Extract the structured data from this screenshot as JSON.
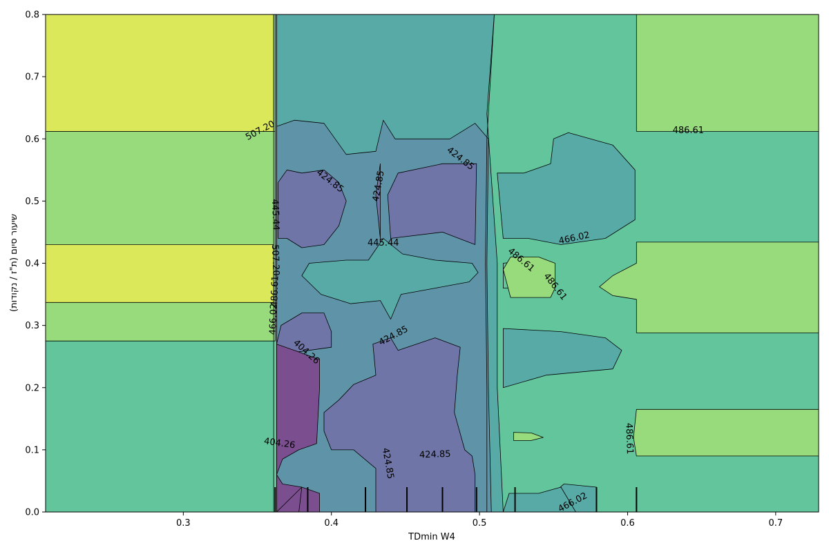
{
  "chart_data": {
    "type": "contour",
    "xlabel": "TDmin W4",
    "ylabel": "שיעור סיום (ת\"ז / נקודות)",
    "xlim": [
      0.207,
      0.729
    ],
    "ylim": [
      0.0,
      0.8
    ],
    "x_ticks": [
      {
        "value": 0.3,
        "label": "0.3"
      },
      {
        "value": 0.4,
        "label": "0.4"
      },
      {
        "value": 0.5,
        "label": "0.5"
      },
      {
        "value": 0.6,
        "label": "0.6"
      },
      {
        "value": 0.7,
        "label": "0.7"
      }
    ],
    "y_ticks": [
      {
        "value": 0.0,
        "label": "0.0"
      },
      {
        "value": 0.1,
        "label": "0.1"
      },
      {
        "value": 0.2,
        "label": "0.2"
      },
      {
        "value": 0.3,
        "label": "0.3"
      },
      {
        "value": 0.4,
        "label": "0.4"
      },
      {
        "value": 0.5,
        "label": "0.5"
      },
      {
        "value": 0.6,
        "label": "0.6"
      },
      {
        "value": 0.7,
        "label": "0.7"
      },
      {
        "value": 0.8,
        "label": "0.8"
      }
    ],
    "levels": [
      404.26,
      424.85,
      445.44,
      466.02,
      486.61,
      507.2
    ],
    "bands": [
      {
        "lo": 383.67,
        "hi": 404.26,
        "color": "#7b4f8f"
      },
      {
        "lo": 404.26,
        "hi": 424.85,
        "color": "#6f75a6"
      },
      {
        "lo": 424.85,
        "hi": 445.44,
        "color": "#5f94a8"
      },
      {
        "lo": 445.44,
        "hi": 466.02,
        "color": "#58aaa7"
      },
      {
        "lo": 466.02,
        "hi": 486.61,
        "color": "#62c59c"
      },
      {
        "lo": 486.61,
        "hi": 507.2,
        "color": "#97db7c"
      },
      {
        "lo": 507.2,
        "hi": 527.79,
        "color": "#dbe85a"
      }
    ],
    "regions": [
      {
        "level": 466.02,
        "poly": [
          [
            0.207,
            0.0
          ],
          [
            0.729,
            0.0
          ],
          [
            0.729,
            0.8
          ],
          [
            0.207,
            0.8
          ]
        ]
      },
      {
        "level": 486.61,
        "poly": [
          [
            0.207,
            0.612
          ],
          [
            0.362,
            0.612
          ],
          [
            0.362,
            0.8
          ],
          [
            0.207,
            0.8
          ]
        ]
      },
      {
        "level": 486.61,
        "poly": [
          [
            0.207,
            0.275
          ],
          [
            0.362,
            0.275
          ],
          [
            0.362,
            0.612
          ],
          [
            0.207,
            0.612
          ]
        ]
      },
      {
        "level": 507.2,
        "poly": [
          [
            0.207,
            0.612
          ],
          [
            0.361,
            0.612
          ],
          [
            0.361,
            0.8
          ],
          [
            0.207,
            0.8
          ]
        ]
      },
      {
        "level": 507.2,
        "poly": [
          [
            0.207,
            0.337
          ],
          [
            0.361,
            0.337
          ],
          [
            0.361,
            0.43
          ],
          [
            0.207,
            0.43
          ]
        ]
      },
      {
        "level": 486.61,
        "poly": [
          [
            0.606,
            0.612
          ],
          [
            0.729,
            0.612
          ],
          [
            0.729,
            0.8
          ],
          [
            0.606,
            0.8
          ]
        ]
      },
      {
        "level": 486.61,
        "poly": [
          [
            0.606,
            0.288
          ],
          [
            0.729,
            0.288
          ],
          [
            0.729,
            0.434
          ],
          [
            0.606,
            0.434
          ],
          [
            0.606,
            0.4
          ],
          [
            0.59,
            0.38
          ],
          [
            0.581,
            0.362
          ],
          [
            0.59,
            0.348
          ],
          [
            0.606,
            0.342
          ]
        ]
      },
      {
        "level": 486.61,
        "poly": [
          [
            0.606,
            0.09
          ],
          [
            0.729,
            0.09
          ],
          [
            0.729,
            0.165
          ],
          [
            0.606,
            0.165
          ],
          [
            0.604,
            0.12
          ]
        ]
      },
      {
        "level": 445.44,
        "poly": [
          [
            0.363,
            0.0
          ],
          [
            0.579,
            0.0
          ],
          [
            0.579,
            0.04
          ],
          [
            0.557,
            0.045
          ],
          [
            0.535,
            0.0
          ],
          [
            0.516,
            0.0
          ],
          [
            0.512,
            0.2
          ],
          [
            0.512,
            0.4
          ],
          [
            0.505,
            0.64
          ],
          [
            0.51,
            0.8
          ],
          [
            0.363,
            0.8
          ]
        ]
      },
      {
        "level": 445.44,
        "poly": [
          [
            0.516,
            0.0
          ],
          [
            0.565,
            0.0
          ],
          [
            0.555,
            0.04
          ],
          [
            0.54,
            0.03
          ],
          [
            0.52,
            0.03
          ]
        ]
      },
      {
        "level": 445.44,
        "poly": [
          [
            0.512,
            0.545
          ],
          [
            0.53,
            0.545
          ],
          [
            0.548,
            0.56
          ],
          [
            0.55,
            0.6
          ],
          [
            0.56,
            0.61
          ],
          [
            0.59,
            0.59
          ],
          [
            0.605,
            0.55
          ],
          [
            0.605,
            0.47
          ],
          [
            0.585,
            0.44
          ],
          [
            0.555,
            0.43
          ],
          [
            0.533,
            0.44
          ],
          [
            0.516,
            0.44
          ]
        ]
      },
      {
        "level": 445.44,
        "poly": [
          [
            0.516,
            0.295
          ],
          [
            0.555,
            0.29
          ],
          [
            0.585,
            0.28
          ],
          [
            0.596,
            0.26
          ],
          [
            0.59,
            0.23
          ],
          [
            0.545,
            0.22
          ],
          [
            0.516,
            0.2
          ]
        ]
      },
      {
        "level": 466.02,
        "poly": [
          [
            0.516,
            0.36
          ],
          [
            0.54,
            0.36
          ],
          [
            0.548,
            0.38
          ],
          [
            0.546,
            0.4
          ],
          [
            0.533,
            0.405
          ],
          [
            0.516,
            0.4
          ]
        ]
      },
      {
        "level": 486.61,
        "poly": [
          [
            0.521,
            0.345
          ],
          [
            0.548,
            0.345
          ],
          [
            0.551,
            0.36
          ],
          [
            0.551,
            0.4
          ],
          [
            0.54,
            0.41
          ],
          [
            0.521,
            0.41
          ],
          [
            0.516,
            0.39
          ]
        ]
      },
      {
        "level": 486.61,
        "poly": [
          [
            0.523,
            0.115
          ],
          [
            0.535,
            0.115
          ],
          [
            0.543,
            0.12
          ],
          [
            0.535,
            0.127
          ],
          [
            0.523,
            0.128
          ]
        ]
      },
      {
        "level": 424.85,
        "poly": [
          [
            0.363,
            0.0
          ],
          [
            0.508,
            0.0
          ],
          [
            0.506,
            0.2
          ],
          [
            0.505,
            0.4
          ],
          [
            0.506,
            0.6
          ],
          [
            0.497,
            0.625
          ],
          [
            0.48,
            0.6
          ],
          [
            0.443,
            0.6
          ],
          [
            0.435,
            0.63
          ],
          [
            0.43,
            0.58
          ],
          [
            0.41,
            0.575
          ],
          [
            0.395,
            0.625
          ],
          [
            0.375,
            0.63
          ],
          [
            0.363,
            0.62
          ]
        ]
      },
      {
        "level": 445.44,
        "poly": [
          [
            0.38,
            0.38
          ],
          [
            0.393,
            0.35
          ],
          [
            0.413,
            0.335
          ],
          [
            0.433,
            0.34
          ],
          [
            0.44,
            0.31
          ],
          [
            0.447,
            0.35
          ],
          [
            0.47,
            0.36
          ],
          [
            0.493,
            0.37
          ],
          [
            0.499,
            0.385
          ],
          [
            0.495,
            0.4
          ],
          [
            0.47,
            0.405
          ],
          [
            0.448,
            0.415
          ],
          [
            0.435,
            0.44
          ],
          [
            0.425,
            0.405
          ],
          [
            0.41,
            0.405
          ],
          [
            0.385,
            0.4
          ]
        ]
      },
      {
        "level": 445.44,
        "poly": [
          [
            0.433,
            0.1
          ],
          [
            0.437,
            0.115
          ],
          [
            0.437,
            0.13
          ],
          [
            0.433,
            0.125
          ]
        ]
      },
      {
        "level": 404.26,
        "poly": [
          [
            0.363,
            0.0
          ],
          [
            0.43,
            0.0
          ],
          [
            0.43,
            0.07
          ],
          [
            0.415,
            0.1
          ],
          [
            0.4,
            0.1
          ],
          [
            0.395,
            0.13
          ],
          [
            0.395,
            0.16
          ],
          [
            0.405,
            0.18
          ],
          [
            0.415,
            0.205
          ],
          [
            0.43,
            0.22
          ],
          [
            0.428,
            0.27
          ],
          [
            0.44,
            0.28
          ],
          [
            0.445,
            0.26
          ],
          [
            0.47,
            0.28
          ],
          [
            0.487,
            0.265
          ],
          [
            0.485,
            0.22
          ],
          [
            0.483,
            0.16
          ],
          [
            0.49,
            0.1
          ],
          [
            0.495,
            0.09
          ],
          [
            0.497,
            0.06
          ],
          [
            0.497,
            0.0
          ]
        ]
      },
      {
        "level": 404.26,
        "poly": [
          [
            0.363,
            0.27
          ],
          [
            0.366,
            0.3
          ],
          [
            0.38,
            0.32
          ],
          [
            0.395,
            0.32
          ],
          [
            0.4,
            0.29
          ],
          [
            0.4,
            0.265
          ],
          [
            0.385,
            0.26
          ],
          [
            0.37,
            0.255
          ]
        ]
      },
      {
        "level": 404.26,
        "poly": [
          [
            0.364,
            0.44
          ],
          [
            0.37,
            0.44
          ],
          [
            0.38,
            0.425
          ],
          [
            0.395,
            0.43
          ],
          [
            0.405,
            0.46
          ],
          [
            0.41,
            0.5
          ],
          [
            0.405,
            0.53
          ],
          [
            0.395,
            0.55
          ],
          [
            0.38,
            0.545
          ],
          [
            0.37,
            0.55
          ],
          [
            0.364,
            0.53
          ]
        ]
      },
      {
        "level": 404.26,
        "poly": [
          [
            0.44,
            0.44
          ],
          [
            0.475,
            0.45
          ],
          [
            0.497,
            0.43
          ],
          [
            0.498,
            0.56
          ],
          [
            0.475,
            0.56
          ],
          [
            0.445,
            0.545
          ],
          [
            0.438,
            0.51
          ]
        ]
      },
      {
        "level": 404.26,
        "poly": [
          [
            0.433,
            0.44
          ],
          [
            0.433,
            0.56
          ],
          [
            0.43,
            0.51
          ]
        ]
      },
      {
        "level": 383.67,
        "poly": [
          [
            0.363,
            0.0
          ],
          [
            0.392,
            0.0
          ],
          [
            0.392,
            0.03
          ],
          [
            0.38,
            0.04
          ],
          [
            0.367,
            0.045
          ],
          [
            0.363,
            0.06
          ]
        ]
      },
      {
        "level": 383.67,
        "poly": [
          [
            0.363,
            0.06
          ],
          [
            0.367,
            0.085
          ],
          [
            0.378,
            0.1
          ],
          [
            0.39,
            0.11
          ],
          [
            0.392,
            0.2
          ],
          [
            0.392,
            0.245
          ],
          [
            0.375,
            0.26
          ],
          [
            0.363,
            0.27
          ]
        ]
      },
      {
        "level": 383.67,
        "poly": [
          [
            0.363,
            0.0
          ],
          [
            0.378,
            0.0
          ],
          [
            0.38,
            0.04
          ]
        ]
      }
    ],
    "contour_lines": [
      [
        [
          0.361,
          0.0
        ],
        [
          0.361,
          0.8
        ]
      ],
      [
        [
          0.363,
          0.0
        ],
        [
          0.363,
          0.8
        ]
      ],
      [
        [
          0.505,
          0.0
        ],
        [
          0.505,
          0.2
        ],
        [
          0.504,
          0.4
        ],
        [
          0.505,
          0.6
        ],
        [
          0.51,
          0.8
        ]
      ]
    ],
    "contour_labels": [
      {
        "text": "507.20",
        "x": 0.352,
        "y": 0.613,
        "angle": -28
      },
      {
        "text": "486.61",
        "x": 0.641,
        "y": 0.613,
        "angle": 0
      },
      {
        "text": "424.85",
        "x": 0.399,
        "y": 0.532,
        "angle": 38
      },
      {
        "text": "424.85",
        "x": 0.432,
        "y": 0.524,
        "angle": -80
      },
      {
        "text": "424.85",
        "x": 0.487,
        "y": 0.568,
        "angle": 38
      },
      {
        "text": "445.44",
        "x": 0.362,
        "y": 0.478,
        "angle": 88
      },
      {
        "text": "445.44",
        "x": 0.435,
        "y": 0.432,
        "angle": 0
      },
      {
        "text": "466.02",
        "x": 0.564,
        "y": 0.44,
        "angle": -12
      },
      {
        "text": "486.61",
        "x": 0.528,
        "y": 0.405,
        "angle": 40
      },
      {
        "text": "486.61",
        "x": 0.551,
        "y": 0.362,
        "angle": 52
      },
      {
        "text": "507.20",
        "x": 0.362,
        "y": 0.405,
        "angle": 88
      },
      {
        "text": "486.61",
        "x": 0.362,
        "y": 0.355,
        "angle": -88
      },
      {
        "text": "466.02",
        "x": 0.361,
        "y": 0.31,
        "angle": -88
      },
      {
        "text": "404.26",
        "x": 0.383,
        "y": 0.257,
        "angle": 42
      },
      {
        "text": "424.85",
        "x": 0.442,
        "y": 0.283,
        "angle": -28
      },
      {
        "text": "404.26",
        "x": 0.365,
        "y": 0.11,
        "angle": 8
      },
      {
        "text": "424.85",
        "x": 0.438,
        "y": 0.078,
        "angle": 80
      },
      {
        "text": "424.85",
        "x": 0.47,
        "y": 0.092,
        "angle": -2
      },
      {
        "text": "486.61",
        "x": 0.601,
        "y": 0.118,
        "angle": 88
      },
      {
        "text": "466.02",
        "x": 0.563,
        "y": 0.015,
        "angle": -28
      }
    ],
    "rug_x": [
      0.362,
      0.384,
      0.423,
      0.451,
      0.475,
      0.498,
      0.524,
      0.579,
      0.606
    ]
  }
}
